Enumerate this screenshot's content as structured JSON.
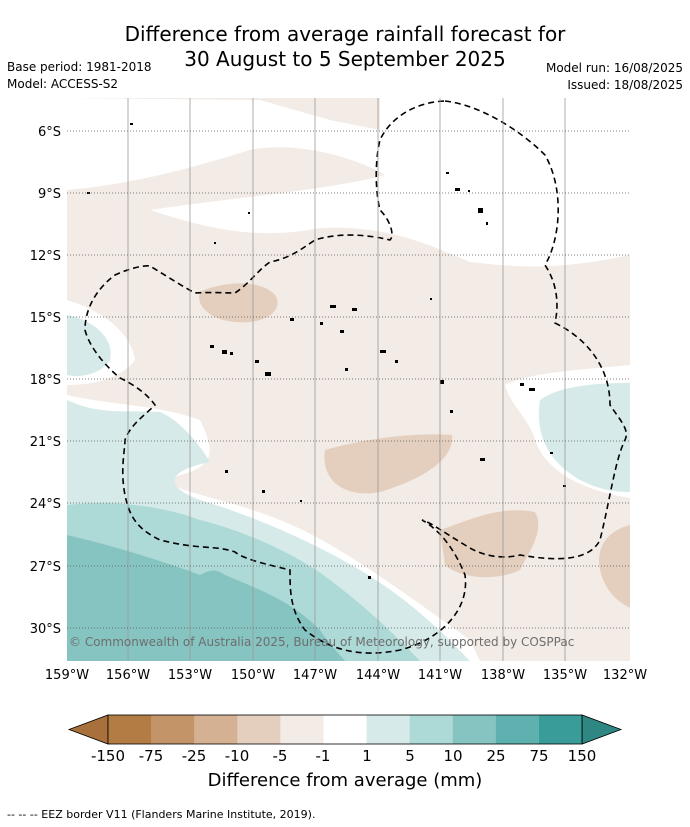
{
  "header": {
    "title_line1": "Difference from average rainfall forecast for",
    "title_line2": "30 August to 5 September 2025",
    "base_period": "Base period: 1981-2018",
    "model": "Model: ACCESS-S2",
    "model_run": "Model run: 16/08/2025",
    "issued": "Issued: 18/08/2025"
  },
  "map": {
    "lat_labels": [
      "6°S",
      "9°S",
      "12°S",
      "15°S",
      "18°S",
      "21°S",
      "24°S",
      "27°S",
      "30°S"
    ],
    "lon_labels": [
      "159°W",
      "156°W",
      "153°W",
      "150°W",
      "147°W",
      "144°W",
      "141°W",
      "138°W",
      "135°W",
      "132°W"
    ],
    "copyright": "© Commonwealth of Australia 2025, Bureau of Meteorology, supported by COSPPac"
  },
  "colorbar": {
    "ticks": [
      "-150",
      "-75",
      "-25",
      "-10",
      "-5",
      "-1",
      "1",
      "5",
      "10",
      "25",
      "75",
      "150"
    ],
    "colors": [
      "#a8703a",
      "#b27c44",
      "#c39467",
      "#d5b193",
      "#e4cfbe",
      "#f3ebe5",
      "#ffffff",
      "#d6ebe9",
      "#add9d6",
      "#85c4c1",
      "#5eb1ae",
      "#3a9c98",
      "#2e8783"
    ],
    "label": "Difference from average (mm)"
  },
  "footnote": "--  --  -- EEZ border V11 (Flanders Marine Institute, 2019)."
}
